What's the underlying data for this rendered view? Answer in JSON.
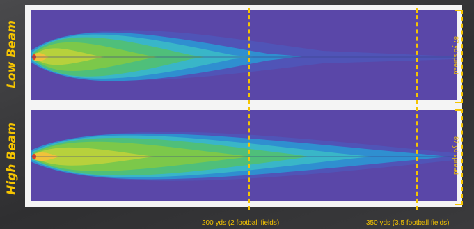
{
  "labels": {
    "low_beam": "Low Beam",
    "high_beam": "High Beam"
  },
  "spread": {
    "low": "87 yd spread",
    "high": "87 yd spread"
  },
  "distances": {
    "d200": "200 yds (2 football fields)",
    "d350": "350 yds (3.5 football fields)"
  },
  "colors": {
    "accent": "#f5c400",
    "background_field": "#5a47a8",
    "panel_frame": "#f4f4f4"
  }
}
